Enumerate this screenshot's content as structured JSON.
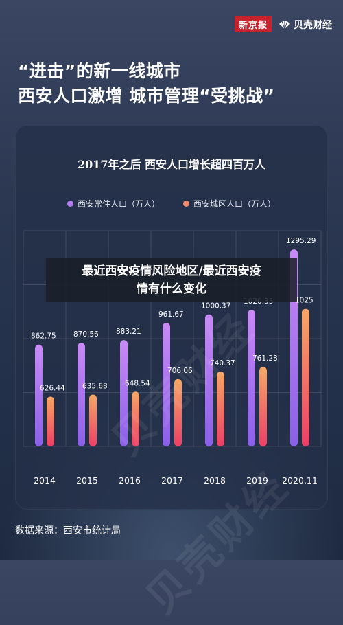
{
  "header": {
    "badge": "新京报",
    "brand_name": "贝壳财经",
    "headline_line1": "“进击”的新一线城市",
    "headline_line2": "西安人口激增 城市管理“受挑战”"
  },
  "overlay_title_line1": "最近西安疫情风险地区/最近西安疫",
  "overlay_title_line2": "情有什么变化",
  "source": "数据来源：西安市统计局",
  "watermark": "贝壳财经",
  "colors": {
    "series_a": "#b27cf0",
    "series_b": "#f3896a",
    "badge": "#c8232c"
  },
  "chart_data": {
    "type": "bar",
    "title": "2017年之后 西安人口增长超四百万人",
    "categories": [
      "2014",
      "2015",
      "2016",
      "2017",
      "2018",
      "2019",
      "2020.11"
    ],
    "series": [
      {
        "name": "西安常住人口（万人）",
        "values": [
          862.75,
          870.56,
          883.21,
          961.67,
          1000.37,
          1020.35,
          1295.29
        ]
      },
      {
        "name": "西安城区人口（万人）",
        "values": [
          626.44,
          635.68,
          648.54,
          706.06,
          740.37,
          761.28,
          1025
        ]
      }
    ],
    "value_labels_a": [
      "862.75",
      "870.56",
      "883.21",
      "961.67",
      "1000.37",
      "1020.35",
      "1295.29"
    ],
    "value_labels_b": [
      "626.44",
      "635.68",
      "648.54",
      "706.06",
      "740.37",
      "761.28",
      "1025"
    ],
    "legend_placement": "top",
    "grid": true
  }
}
